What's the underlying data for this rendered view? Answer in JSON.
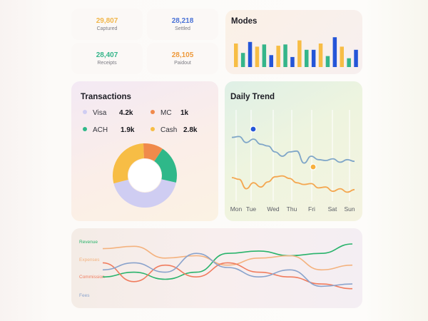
{
  "stats": [
    {
      "value": "29,807",
      "label": "Captured",
      "color": "#f1b64a"
    },
    {
      "value": "28,218",
      "label": "Settled",
      "color": "#4a72d6"
    },
    {
      "value": "28,407",
      "label": "Receipts",
      "color": "#35b58a"
    },
    {
      "value": "28,105",
      "label": "Paidout",
      "color": "#ee9a3c"
    }
  ],
  "modes": {
    "title": "Modes"
  },
  "transactions": {
    "title": "Transactions",
    "legend": [
      {
        "name": "Visa",
        "value": "4.2k",
        "color": "#cfcdf2",
        "icon": "dot-icon"
      },
      {
        "name": "MC",
        "value": "1k",
        "color": "#f08a4b",
        "icon": "dot-icon"
      },
      {
        "name": "ACH",
        "value": "1.9k",
        "color": "#2fb889",
        "icon": "dot-icon"
      },
      {
        "name": "Cash",
        "value": "2.8k",
        "color": "#f7bd45",
        "icon": "dot-icon"
      }
    ]
  },
  "trend": {
    "title": "Daily Trend",
    "days": [
      "Mon",
      "Tue",
      "Wed",
      "Thu",
      "Fri",
      "Sat",
      "Sun"
    ]
  },
  "wave": {
    "series": [
      {
        "name": "Revenue",
        "color": "#29b36b"
      },
      {
        "name": "Expenses",
        "color": "#f4b27e"
      },
      {
        "name": "Commission",
        "color": "#f07c5e"
      },
      {
        "name": "Fees",
        "color": "#8aa3cc"
      }
    ]
  },
  "chart_data": [
    {
      "type": "bar",
      "title": "Modes",
      "series": [
        {
          "values": [
            0.75,
            0.45,
            0.8,
            0.65,
            0.72,
            0.38,
            0.68,
            0.72,
            0.32,
            0.85,
            0.55,
            0.55,
            0.75,
            0.35,
            0.95,
            0.65,
            0.28,
            0.55
          ]
        }
      ]
    },
    {
      "type": "pie",
      "title": "Transactions",
      "categories": [
        "Visa",
        "MC",
        "ACH",
        "Cash"
      ],
      "values": [
        4.2,
        1.0,
        1.9,
        2.8
      ]
    },
    {
      "type": "line",
      "title": "Daily Trend",
      "categories": [
        "Mon",
        "Tue",
        "Wed",
        "Thu",
        "Fri",
        "Sat",
        "Sun"
      ],
      "series": [
        {
          "values": [
            0.72,
            0.62,
            0.5,
            0.55,
            0.42,
            0.46,
            0.45
          ]
        },
        {
          "values": [
            0.25,
            0.18,
            0.28,
            0.18,
            0.13,
            0.09,
            0.12
          ]
        }
      ]
    },
    {
      "type": "line",
      "series": [
        {
          "name": "Revenue",
          "values": [
            0.3,
            0.4,
            0.25,
            0.4,
            0.8,
            0.85,
            0.75,
            0.8,
            1.0
          ]
        },
        {
          "name": "Expenses",
          "values": [
            0.9,
            0.95,
            0.7,
            0.75,
            0.55,
            0.7,
            0.75,
            0.45,
            0.55
          ]
        },
        {
          "name": "Commission",
          "values": [
            0.6,
            0.2,
            0.55,
            0.3,
            0.6,
            0.4,
            0.3,
            0.15,
            0.05
          ]
        },
        {
          "name": "Fees",
          "values": [
            0.45,
            0.6,
            0.4,
            0.8,
            0.5,
            0.3,
            0.45,
            0.1,
            0.15
          ]
        }
      ]
    }
  ]
}
